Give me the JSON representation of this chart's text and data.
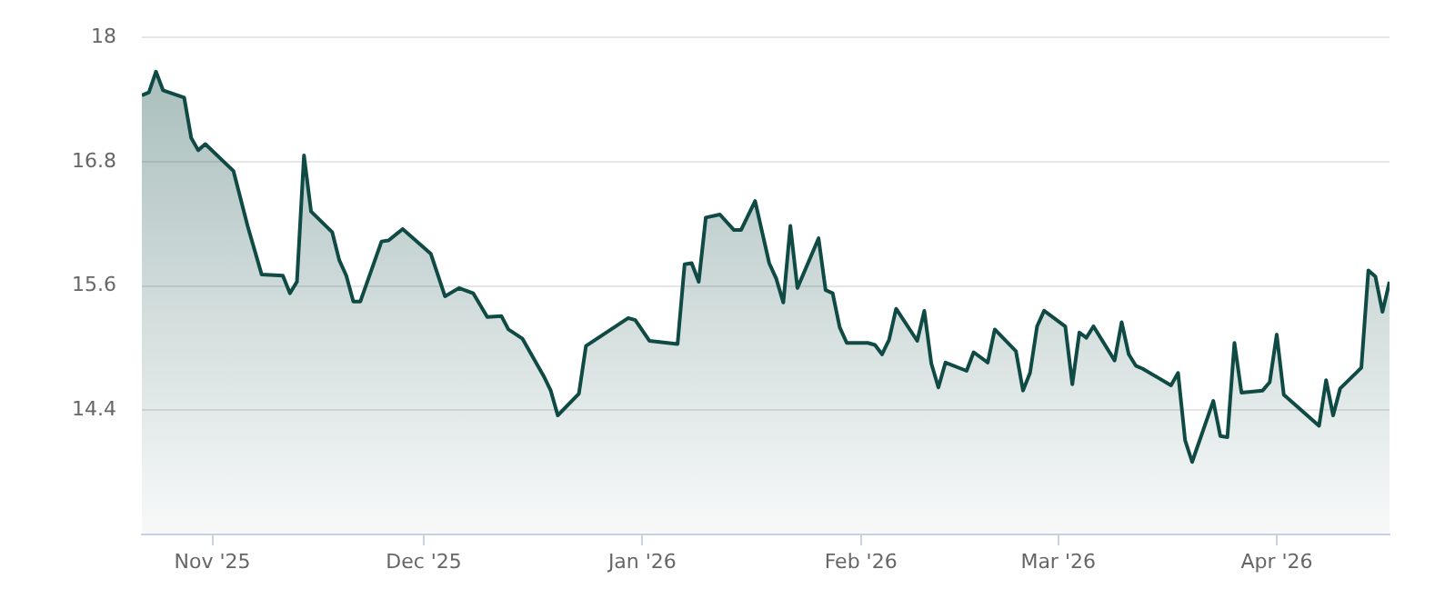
{
  "chart_data": {
    "type": "area",
    "x": [
      "2025-10-22",
      "2025-10-23",
      "2025-10-24",
      "2025-10-25",
      "2025-10-28",
      "2025-10-29",
      "2025-10-30",
      "2025-10-31",
      "2025-11-04",
      "2025-11-06",
      "2025-11-08",
      "2025-11-11",
      "2025-11-12",
      "2025-11-13",
      "2025-11-14",
      "2025-11-15",
      "2025-11-18",
      "2025-11-19",
      "2025-11-20",
      "2025-11-21",
      "2025-11-22",
      "2025-11-25",
      "2025-11-26",
      "2025-11-28",
      "2025-12-02",
      "2025-12-04",
      "2025-12-06",
      "2025-12-08",
      "2025-12-10",
      "2025-12-12",
      "2025-12-13",
      "2025-12-15",
      "2025-12-18",
      "2025-12-19",
      "2025-12-20",
      "2025-12-23",
      "2025-12-24",
      "2025-12-30",
      "2025-12-31",
      "2026-01-02",
      "2026-01-06",
      "2026-01-07",
      "2026-01-08",
      "2026-01-09",
      "2026-01-10",
      "2026-01-12",
      "2026-01-14",
      "2026-01-15",
      "2026-01-17",
      "2026-01-19",
      "2026-01-20",
      "2026-01-21",
      "2026-01-22",
      "2026-01-23",
      "2026-01-26",
      "2026-01-27",
      "2026-01-28",
      "2026-01-29",
      "2026-01-30",
      "2026-02-02",
      "2026-02-03",
      "2026-02-04",
      "2026-02-05",
      "2026-02-06",
      "2026-02-09",
      "2026-02-10",
      "2026-02-11",
      "2026-02-12",
      "2026-02-13",
      "2026-02-16",
      "2026-02-17",
      "2026-02-19",
      "2026-02-20",
      "2026-02-23",
      "2026-02-24",
      "2026-02-25",
      "2026-02-26",
      "2026-02-27",
      "2026-03-02",
      "2026-03-03",
      "2026-03-04",
      "2026-03-05",
      "2026-03-06",
      "2026-03-09",
      "2026-03-10",
      "2026-03-11",
      "2026-03-12",
      "2026-03-13",
      "2026-03-17",
      "2026-03-18",
      "2026-03-19",
      "2026-03-20",
      "2026-03-23",
      "2026-03-24",
      "2026-03-25",
      "2026-03-26",
      "2026-03-27",
      "2026-03-30",
      "2026-03-31",
      "2026-04-01",
      "2026-04-02",
      "2026-04-07",
      "2026-04-08",
      "2026-04-09",
      "2026-04-10",
      "2026-04-13",
      "2026-04-14",
      "2026-04-15",
      "2026-04-16",
      "2026-04-17"
    ],
    "series": [
      {
        "color": "#0f4a45",
        "values": [
          17.44,
          17.47,
          17.67,
          17.49,
          17.42,
          17.03,
          16.91,
          16.97,
          16.71,
          16.18,
          15.71,
          15.7,
          15.53,
          15.64,
          16.86,
          16.32,
          16.12,
          15.85,
          15.7,
          15.45,
          15.45,
          16.03,
          16.04,
          16.15,
          15.91,
          15.5,
          15.58,
          15.53,
          15.3,
          15.31,
          15.18,
          15.09,
          14.73,
          14.59,
          14.35,
          14.56,
          15.02,
          15.29,
          15.27,
          15.07,
          15.04,
          15.81,
          15.82,
          15.64,
          16.26,
          16.29,
          16.14,
          16.14,
          16.42,
          15.82,
          15.67,
          15.44,
          16.18,
          15.58,
          16.06,
          15.56,
          15.53,
          15.2,
          15.05,
          15.05,
          15.03,
          14.94,
          15.08,
          15.38,
          15.07,
          15.36,
          14.85,
          14.62,
          14.86,
          14.78,
          14.96,
          14.86,
          15.18,
          14.97,
          14.59,
          14.76,
          15.21,
          15.36,
          15.21,
          14.65,
          15.15,
          15.1,
          15.21,
          14.88,
          15.25,
          14.94,
          14.83,
          14.8,
          14.64,
          14.76,
          14.11,
          13.9,
          14.49,
          14.15,
          14.14,
          15.05,
          14.57,
          14.59,
          14.67,
          15.13,
          14.55,
          14.25,
          14.69,
          14.35,
          14.61,
          14.81,
          15.75,
          15.69,
          15.35,
          15.64
        ]
      }
    ],
    "xlim": [
      "2025-10-22",
      "2026-04-17"
    ],
    "xticks": [
      {
        "value": "2025-11-01",
        "label": "Nov '25"
      },
      {
        "value": "2025-12-01",
        "label": "Dec '25"
      },
      {
        "value": "2026-01-01",
        "label": "Jan '26"
      },
      {
        "value": "2026-02-01",
        "label": "Feb '26"
      },
      {
        "value": "2026-03-01",
        "label": "Mar '26"
      },
      {
        "value": "2026-04-01",
        "label": "Apr '26"
      }
    ],
    "ylim": [
      13.2,
      18
    ],
    "yticks": [
      {
        "value": 14.4,
        "label": "14.4"
      },
      {
        "value": 15.6,
        "label": "15.6"
      },
      {
        "value": 16.8,
        "label": "16.8"
      },
      {
        "value": 18,
        "label": "18"
      }
    ],
    "grid": "y",
    "marker": "none",
    "line_style": "solid"
  }
}
